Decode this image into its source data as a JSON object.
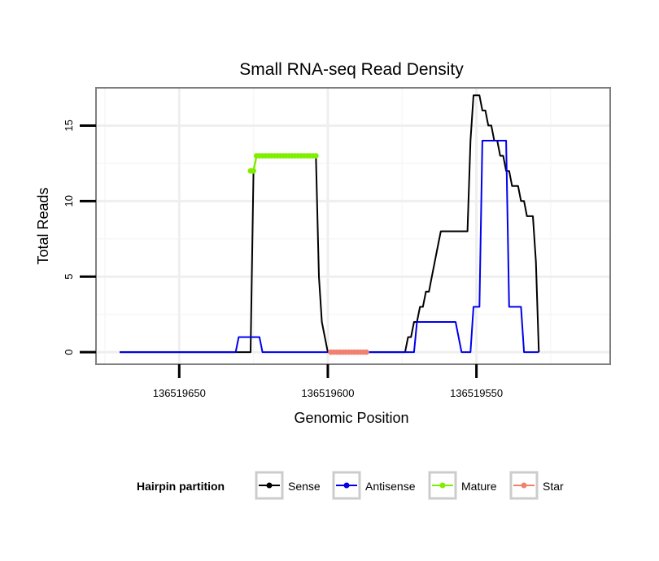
{
  "chart_data": {
    "type": "line",
    "title": "Small RNA-seq Read Density",
    "xlabel": "Genomic Position",
    "ylabel": "Total Reads",
    "xlim": [
      136519678,
      136519505
    ],
    "ylim": [
      -0.8,
      17.5
    ],
    "x_reversed": true,
    "grid": true,
    "x_ticks": [
      136519650,
      136519600,
      136519550
    ],
    "x_tick_labels": [
      "136519650",
      "136519600",
      "136519550"
    ],
    "y_ticks": [
      0,
      5,
      10,
      15
    ],
    "y_tick_labels": [
      "0",
      "5",
      "10",
      "15"
    ],
    "legend": {
      "title": "Hairpin partition",
      "position": "bottom",
      "entries": [
        "Sense",
        "Antisense",
        "Mature",
        "Star"
      ]
    },
    "series": [
      {
        "name": "Sense",
        "color": "#000000",
        "marker": false,
        "points": [
          [
            136519670,
            0
          ],
          [
            136519626,
            0
          ],
          [
            136519625,
            12
          ],
          [
            136519624,
            13
          ],
          [
            136519604,
            13
          ],
          [
            136519603,
            5
          ],
          [
            136519602,
            2
          ],
          [
            136519600,
            0
          ],
          [
            136519585,
            0
          ],
          [
            136519574,
            0
          ],
          [
            136519573,
            1
          ],
          [
            136519572,
            1
          ],
          [
            136519571,
            2
          ],
          [
            136519570,
            2
          ],
          [
            136519569,
            3
          ],
          [
            136519568,
            3
          ],
          [
            136519567,
            4
          ],
          [
            136519566,
            4
          ],
          [
            136519565,
            5
          ],
          [
            136519563,
            7
          ],
          [
            136519562,
            8
          ],
          [
            136519553,
            8
          ],
          [
            136519552,
            14
          ],
          [
            136519551,
            17
          ],
          [
            136519549,
            17
          ],
          [
            136519548,
            16
          ],
          [
            136519547,
            16
          ],
          [
            136519546,
            15
          ],
          [
            136519545,
            15
          ],
          [
            136519544,
            14
          ],
          [
            136519543,
            14
          ],
          [
            136519542,
            13
          ],
          [
            136519541,
            13
          ],
          [
            136519540,
            12
          ],
          [
            136519539,
            12
          ],
          [
            136519538,
            11
          ],
          [
            136519536,
            11
          ],
          [
            136519535,
            10
          ],
          [
            136519534,
            10
          ],
          [
            136519533,
            9
          ],
          [
            136519531,
            9
          ],
          [
            136519530,
            6
          ],
          [
            136519529,
            0
          ]
        ]
      },
      {
        "name": "Antisense",
        "color": "#0000ee",
        "marker": false,
        "points": [
          [
            136519670,
            0
          ],
          [
            136519631,
            0
          ],
          [
            136519630,
            1
          ],
          [
            136519623,
            1
          ],
          [
            136519622,
            0
          ],
          [
            136519572,
            0
          ],
          [
            136519571,
            0
          ],
          [
            136519570,
            2
          ],
          [
            136519557,
            2
          ],
          [
            136519555,
            0
          ],
          [
            136519552,
            0
          ],
          [
            136519551,
            3
          ],
          [
            136519549,
            3
          ],
          [
            136519548,
            14
          ],
          [
            136519540,
            14
          ],
          [
            136519539,
            3
          ],
          [
            136519535,
            3
          ],
          [
            136519534,
            0
          ],
          [
            136519529,
            0
          ]
        ]
      },
      {
        "name": "Mature",
        "color": "#7fee00",
        "marker": true,
        "points": [
          [
            136519626,
            12
          ],
          [
            136519625,
            12
          ],
          [
            136519624,
            13
          ],
          [
            136519623,
            13
          ],
          [
            136519622,
            13
          ],
          [
            136519621,
            13
          ],
          [
            136519620,
            13
          ],
          [
            136519619,
            13
          ],
          [
            136519618,
            13
          ],
          [
            136519617,
            13
          ],
          [
            136519616,
            13
          ],
          [
            136519615,
            13
          ],
          [
            136519614,
            13
          ],
          [
            136519613,
            13
          ],
          [
            136519612,
            13
          ],
          [
            136519611,
            13
          ],
          [
            136519610,
            13
          ],
          [
            136519609,
            13
          ],
          [
            136519608,
            13
          ],
          [
            136519607,
            13
          ],
          [
            136519606,
            13
          ],
          [
            136519605,
            13
          ],
          [
            136519604,
            13
          ]
        ]
      },
      {
        "name": "Star",
        "color": "#f08070",
        "marker": true,
        "points": [
          [
            136519599,
            0
          ],
          [
            136519598,
            0
          ],
          [
            136519597,
            0
          ],
          [
            136519596,
            0
          ],
          [
            136519595,
            0
          ],
          [
            136519594,
            0
          ],
          [
            136519593,
            0
          ],
          [
            136519592,
            0
          ],
          [
            136519591,
            0
          ],
          [
            136519590,
            0
          ],
          [
            136519589,
            0
          ],
          [
            136519588,
            0
          ],
          [
            136519587,
            0
          ]
        ]
      }
    ]
  }
}
